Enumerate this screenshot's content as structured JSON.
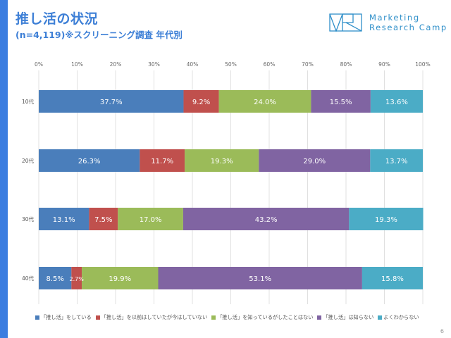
{
  "header": {
    "title": "推し活の状況",
    "subtitle": "(n=4,119)※スクリーニング調査 年代別"
  },
  "logo": {
    "mark": "MRC-logo-mark",
    "line1": "Marketing",
    "line2": "Research Camp",
    "color": "#2f8fc9"
  },
  "page_number": "6",
  "colors": {
    "accent": "#3b7de0",
    "title": "#3d7fd6"
  },
  "chart_data": {
    "type": "bar",
    "orientation": "horizontal",
    "stacked": "percent",
    "title": "",
    "xlabel": "",
    "ylabel": "",
    "xlim": [
      0,
      100
    ],
    "x_ticks": [
      "0%",
      "10%",
      "20%",
      "30%",
      "40%",
      "50%",
      "60%",
      "70%",
      "80%",
      "90%",
      "100%"
    ],
    "grid": true,
    "legend_position": "bottom",
    "categories": [
      "10代",
      "20代",
      "30代",
      "40代"
    ],
    "series": [
      {
        "name": "「推し活」をしている",
        "color": "#4a7ebb",
        "values": [
          37.7,
          26.3,
          13.1,
          8.5
        ],
        "labels": [
          "37.7%",
          "26.3%",
          "13.1%",
          "8.5%"
        ]
      },
      {
        "name": "「推し活」を以前はしていたが今はしていない",
        "color": "#c0504d",
        "values": [
          9.2,
          11.7,
          7.5,
          2.7
        ],
        "labels": [
          "9.2%",
          "11.7%",
          "7.5%",
          "2.7%"
        ]
      },
      {
        "name": "「推し活」を知っているがしたことはない",
        "color": "#9bbb59",
        "values": [
          24.0,
          19.3,
          17.0,
          19.9
        ],
        "labels": [
          "24.0%",
          "19.3%",
          "17.0%",
          "19.9%"
        ]
      },
      {
        "name": "「推し活」は知らない",
        "color": "#8064a2",
        "values": [
          15.5,
          29.0,
          43.2,
          53.1
        ],
        "labels": [
          "15.5%",
          "29.0%",
          "43.2%",
          "53.1%"
        ]
      },
      {
        "name": "よくわからない",
        "color": "#4bacc6",
        "values": [
          13.6,
          13.7,
          19.3,
          15.8
        ],
        "labels": [
          "13.6%",
          "13.7%",
          "19.3%",
          "15.8%"
        ]
      }
    ]
  }
}
